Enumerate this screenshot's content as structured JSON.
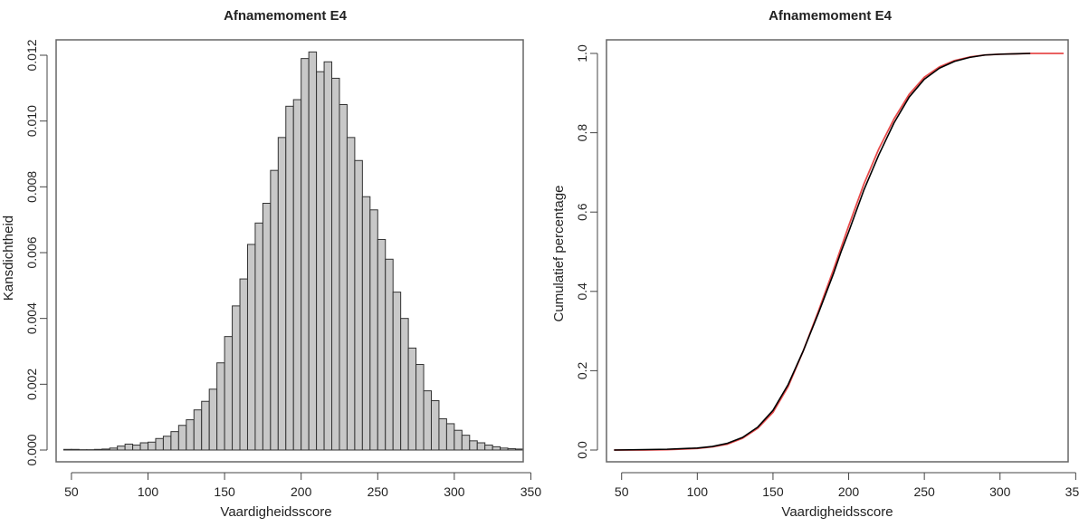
{
  "chart_data": [
    {
      "type": "bar",
      "title": "Afnamemoment E4",
      "xlabel": "Vaardigheidsscore",
      "ylabel": "Kansdichtheid",
      "xlim": [
        40,
        345
      ],
      "ylim": [
        0,
        0.0122
      ],
      "xticks": [
        "50",
        "100",
        "150",
        "200",
        "250",
        "300",
        "350"
      ],
      "yticks": [
        "0.000",
        "0.002",
        "0.004",
        "0.006",
        "0.008",
        "0.010",
        "0.012"
      ],
      "bin_width": 5,
      "bin_start": 40,
      "values": [
        0.0,
        2e-05,
        2e-05,
        1e-05,
        1e-05,
        2e-05,
        3e-05,
        6e-05,
        0.00012,
        0.00018,
        0.00015,
        0.00022,
        0.00024,
        0.00035,
        0.00042,
        0.00056,
        0.00075,
        0.00092,
        0.00122,
        0.00148,
        0.00185,
        0.00265,
        0.00345,
        0.00438,
        0.0052,
        0.00625,
        0.0069,
        0.0075,
        0.0085,
        0.0095,
        0.01045,
        0.01065,
        0.0119,
        0.0121,
        0.0115,
        0.0118,
        0.0113,
        0.0105,
        0.0095,
        0.0088,
        0.0077,
        0.0073,
        0.0064,
        0.0058,
        0.0048,
        0.004,
        0.0031,
        0.0026,
        0.0018,
        0.0015,
        0.00095,
        0.0008,
        0.0006,
        0.00045,
        0.00028,
        0.00022,
        0.00015,
        0.0001,
        6e-05,
        4e-05,
        3e-05
      ]
    },
    {
      "type": "line",
      "title": "Afnamemoment E4",
      "xlabel": "Vaardigheidsscore",
      "ylabel": "Cumulatief percentage",
      "xlim": [
        40,
        345
      ],
      "ylim": [
        0,
        1.0
      ],
      "xticks": [
        "50",
        "100",
        "150",
        "200",
        "250",
        "300",
        "350"
      ],
      "yticks": [
        "0.0",
        "0.2",
        "0.4",
        "0.6",
        "0.8",
        "1.0"
      ],
      "series": [
        {
          "color": "#000000",
          "x": [
            45,
            80,
            100,
            110,
            120,
            130,
            140,
            150,
            160,
            170,
            180,
            190,
            195,
            200,
            210,
            220,
            230,
            240,
            250,
            260,
            270,
            280,
            290,
            300,
            310,
            320
          ],
          "y": [
            0.0,
            0.002,
            0.005,
            0.009,
            0.017,
            0.032,
            0.058,
            0.1,
            0.165,
            0.25,
            0.345,
            0.445,
            0.5,
            0.55,
            0.655,
            0.745,
            0.825,
            0.89,
            0.935,
            0.963,
            0.98,
            0.99,
            0.996,
            0.998,
            0.999,
            1.0
          ]
        },
        {
          "color": "#e84b4b",
          "x": [
            45,
            65,
            80,
            100,
            110,
            120,
            130,
            140,
            150,
            160,
            170,
            180,
            190,
            200,
            210,
            220,
            230,
            240,
            250,
            260,
            270,
            280,
            290,
            300,
            310,
            320,
            342
          ],
          "y": [
            0.0,
            0.0,
            0.001,
            0.004,
            0.008,
            0.015,
            0.03,
            0.055,
            0.095,
            0.16,
            0.25,
            0.35,
            0.455,
            0.565,
            0.67,
            0.76,
            0.835,
            0.897,
            0.94,
            0.966,
            0.982,
            0.991,
            0.996,
            0.998,
            0.999,
            1.0,
            1.0
          ]
        }
      ]
    }
  ]
}
